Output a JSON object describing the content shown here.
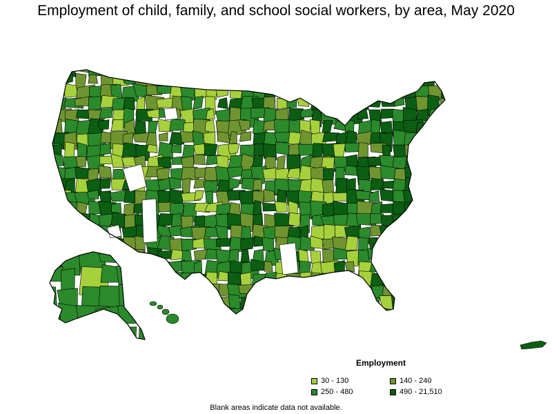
{
  "title": "Employment of child, family, and school social workers, by area, May 2020",
  "legend": {
    "title": "Employment",
    "items": [
      {
        "label": "30 - 130",
        "color": "#a7d13c"
      },
      {
        "label": "140 - 240",
        "color": "#6f9530"
      },
      {
        "label": "250 - 480",
        "color": "#2b8a2b"
      },
      {
        "label": "490 - 21,510",
        "color": "#0b5e12"
      }
    ]
  },
  "note": "Blank areas indicate data not available.",
  "colors": {
    "border": "#000000",
    "no_data": "#ffffff"
  }
}
